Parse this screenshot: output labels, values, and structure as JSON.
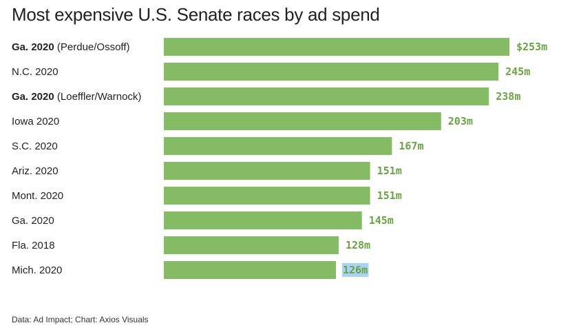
{
  "colors": {
    "bar": "#85bb65",
    "value_text": "#6aa342",
    "highlight": "#a9d4f5"
  },
  "chart_data": {
    "type": "bar",
    "orientation": "horizontal",
    "title": "Most expensive U.S. Senate races by ad spend",
    "categories": [
      "Ga. 2020 (Perdue/Ossoff)",
      "N.C. 2020",
      "Ga. 2020 (Loeffler/Warnock)",
      "Iowa 2020",
      "S.C. 2020",
      "Ariz. 2020",
      "Mont. 2020",
      "Ga. 2020",
      "Fla. 2018",
      "Mich. 2020"
    ],
    "category_parts": [
      {
        "bold": "Ga. 2020",
        "rest": " (Perdue/Ossoff)"
      },
      {
        "bold": "",
        "rest": "N.C. 2020"
      },
      {
        "bold": "Ga. 2020",
        "rest": " (Loeffler/Warnock)"
      },
      {
        "bold": "",
        "rest": "Iowa 2020"
      },
      {
        "bold": "",
        "rest": "S.C. 2020"
      },
      {
        "bold": "",
        "rest": "Ariz. 2020"
      },
      {
        "bold": "",
        "rest": "Mont. 2020"
      },
      {
        "bold": "",
        "rest": "Ga. 2020"
      },
      {
        "bold": "",
        "rest": "Fla. 2018"
      },
      {
        "bold": "",
        "rest": "Mich. 2020"
      }
    ],
    "values": [
      253,
      245,
      238,
      203,
      167,
      151,
      151,
      145,
      128,
      126
    ],
    "value_labels": [
      "$253m",
      "245m",
      "238m",
      "203m",
      "167m",
      "151m",
      "151m",
      "145m",
      "128m",
      "126m"
    ],
    "highlighted_index": 9,
    "unit": "million dollars",
    "xlim": [
      0,
      253
    ],
    "grid": false,
    "source": "Data: Ad Impact; Chart: Axios Visuals"
  }
}
